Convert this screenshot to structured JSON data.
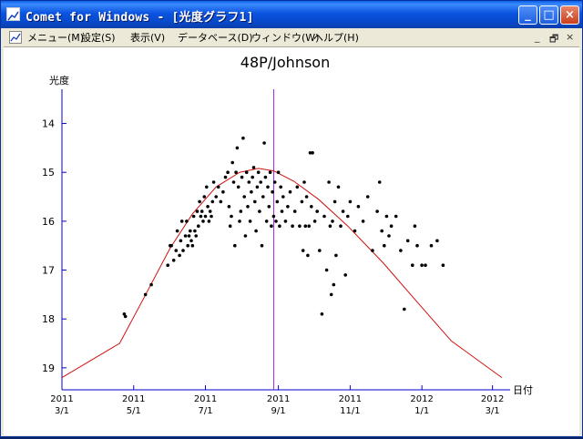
{
  "window": {
    "title": "Comet for Windows - [光度グラフ1]",
    "buttons": {
      "minimize": "_",
      "maximize": "□",
      "close": "×"
    }
  },
  "menubar": {
    "items": [
      "メニュー(M)",
      "設定(S)",
      "表示(V)",
      "データベース(D)",
      "ウィンドウ(W)",
      "ヘルプ(H)"
    ],
    "mdi_buttons": {
      "minimize": "_",
      "restore": "🗗",
      "close": "×"
    }
  },
  "chart_data": {
    "type": "scatter",
    "title": "48P/Johnson",
    "xlabel": "日付",
    "ylabel": "光度",
    "y_inverted": true,
    "ylim": [
      19.45,
      13.3
    ],
    "y_ticks": [
      14,
      15,
      16,
      17,
      18,
      19
    ],
    "xlim": [
      "2011-03-01",
      "2012-03-16"
    ],
    "x_ticks": [
      {
        "date": "2011-03-01",
        "year": "2011",
        "md": "3/1"
      },
      {
        "date": "2011-05-01",
        "year": "2011",
        "md": "5/1"
      },
      {
        "date": "2011-07-01",
        "year": "2011",
        "md": "7/1"
      },
      {
        "date": "2011-09-01",
        "year": "2011",
        "md": "9/1"
      },
      {
        "date": "2011-11-01",
        "year": "2011",
        "md": "11/1"
      },
      {
        "date": "2012-01-01",
        "year": "2012",
        "md": "1/1"
      },
      {
        "date": "2012-03-01",
        "year": "2012",
        "md": "3/1"
      }
    ],
    "vertical_marker_date": "2011-08-28",
    "colors": {
      "points": "#000000",
      "curve": "#d01010",
      "marker": "#a020e0",
      "axes": "#0000cc"
    },
    "curve": [
      [
        "2011-03-01",
        19.2
      ],
      [
        "2011-04-19",
        18.5
      ],
      [
        "2011-05-09",
        17.6
      ],
      [
        "2011-06-01",
        16.55
      ],
      [
        "2011-06-20",
        15.85
      ],
      [
        "2011-07-10",
        15.3
      ],
      [
        "2011-07-30",
        15.0
      ],
      [
        "2011-08-15",
        14.92
      ],
      [
        "2011-08-28",
        14.97
      ],
      [
        "2011-09-14",
        15.18
      ],
      [
        "2011-10-05",
        15.55
      ],
      [
        "2011-10-30",
        16.1
      ],
      [
        "2011-11-29",
        16.85
      ],
      [
        "2011-12-26",
        17.6
      ],
      [
        "2012-01-26",
        18.45
      ],
      [
        "2012-03-09",
        19.2
      ]
    ],
    "points": [
      [
        "2011-04-23",
        17.9
      ],
      [
        "2011-04-24",
        17.95
      ],
      [
        "2011-05-11",
        17.5
      ],
      [
        "2011-05-16",
        17.3
      ],
      [
        "2011-05-30",
        16.9
      ],
      [
        "2011-06-01",
        16.5
      ],
      [
        "2011-06-02",
        16.5
      ],
      [
        "2011-06-04",
        16.8
      ],
      [
        "2011-06-06",
        16.6
      ],
      [
        "2011-06-07",
        16.2
      ],
      [
        "2011-06-09",
        16.7
      ],
      [
        "2011-06-10",
        16.4
      ],
      [
        "2011-06-11",
        16.0
      ],
      [
        "2011-06-12",
        16.6
      ],
      [
        "2011-06-14",
        16.3
      ],
      [
        "2011-06-15",
        16.0
      ],
      [
        "2011-06-16",
        16.5
      ],
      [
        "2011-06-17",
        16.3
      ],
      [
        "2011-06-18",
        16.2
      ],
      [
        "2011-06-19",
        16.4
      ],
      [
        "2011-06-20",
        16.5
      ],
      [
        "2011-06-21",
        15.9
      ],
      [
        "2011-06-22",
        16.2
      ],
      [
        "2011-06-23",
        16.3
      ],
      [
        "2011-06-24",
        15.8
      ],
      [
        "2011-06-25",
        16.1
      ],
      [
        "2011-06-26",
        15.6
      ],
      [
        "2011-06-27",
        15.9
      ],
      [
        "2011-06-28",
        15.8
      ],
      [
        "2011-06-29",
        16.0
      ],
      [
        "2011-06-30",
        15.5
      ],
      [
        "2011-07-01",
        15.9
      ],
      [
        "2011-07-02",
        15.3
      ],
      [
        "2011-07-03",
        15.7
      ],
      [
        "2011-07-04",
        16.0
      ],
      [
        "2011-07-05",
        15.8
      ],
      [
        "2011-07-06",
        15.9
      ],
      [
        "2011-07-07",
        15.6
      ],
      [
        "2011-07-08",
        15.2
      ],
      [
        "2011-07-10",
        15.5
      ],
      [
        "2011-07-12",
        15.3
      ],
      [
        "2011-07-14",
        15.6
      ],
      [
        "2011-07-16",
        15.4
      ],
      [
        "2011-07-18",
        15.1
      ],
      [
        "2011-07-20",
        15.0
      ],
      [
        "2011-07-21",
        15.7
      ],
      [
        "2011-07-22",
        16.1
      ],
      [
        "2011-07-23",
        15.9
      ],
      [
        "2011-07-24",
        14.8
      ],
      [
        "2011-07-25",
        15.2
      ],
      [
        "2011-07-26",
        16.5
      ],
      [
        "2011-07-27",
        15.0
      ],
      [
        "2011-07-28",
        14.5
      ],
      [
        "2011-07-29",
        15.3
      ],
      [
        "2011-07-30",
        16.0
      ],
      [
        "2011-07-31",
        15.8
      ],
      [
        "2011-08-01",
        15.1
      ],
      [
        "2011-08-02",
        14.3
      ],
      [
        "2011-08-03",
        15.5
      ],
      [
        "2011-08-04",
        16.3
      ],
      [
        "2011-08-05",
        15.0
      ],
      [
        "2011-08-06",
        15.7
      ],
      [
        "2011-08-07",
        15.2
      ],
      [
        "2011-08-08",
        16.0
      ],
      [
        "2011-08-09",
        15.4
      ],
      [
        "2011-08-10",
        15.1
      ],
      [
        "2011-08-11",
        14.9
      ],
      [
        "2011-08-12",
        15.6
      ],
      [
        "2011-08-13",
        16.2
      ],
      [
        "2011-08-14",
        15.3
      ],
      [
        "2011-08-15",
        15.0
      ],
      [
        "2011-08-16",
        15.8
      ],
      [
        "2011-08-17",
        15.2
      ],
      [
        "2011-08-18",
        16.5
      ],
      [
        "2011-08-19",
        15.5
      ],
      [
        "2011-08-20",
        14.4
      ],
      [
        "2011-08-21",
        15.1
      ],
      [
        "2011-08-22",
        16.0
      ],
      [
        "2011-08-23",
        15.3
      ],
      [
        "2011-08-24",
        15.7
      ],
      [
        "2011-08-25",
        15.0
      ],
      [
        "2011-08-26",
        16.1
      ],
      [
        "2011-08-27",
        15.4
      ],
      [
        "2011-08-28",
        15.9
      ],
      [
        "2011-08-29",
        15.2
      ],
      [
        "2011-08-30",
        16.0
      ],
      [
        "2011-08-31",
        15.6
      ],
      [
        "2011-09-01",
        15.0
      ],
      [
        "2011-09-02",
        16.1
      ],
      [
        "2011-09-03",
        15.3
      ],
      [
        "2011-09-04",
        15.8
      ],
      [
        "2011-09-05",
        15.5
      ],
      [
        "2011-09-07",
        16.0
      ],
      [
        "2011-09-09",
        15.7
      ],
      [
        "2011-09-11",
        15.4
      ],
      [
        "2011-09-13",
        16.1
      ],
      [
        "2011-09-15",
        15.8
      ],
      [
        "2011-09-17",
        15.3
      ],
      [
        "2011-09-19",
        16.1
      ],
      [
        "2011-09-21",
        15.6
      ],
      [
        "2011-09-22",
        16.6
      ],
      [
        "2011-09-23",
        15.2
      ],
      [
        "2011-09-24",
        16.1
      ],
      [
        "2011-09-25",
        15.5
      ],
      [
        "2011-09-26",
        16.7
      ],
      [
        "2011-09-27",
        16.1
      ],
      [
        "2011-09-28",
        14.6
      ],
      [
        "2011-09-29",
        15.7
      ],
      [
        "2011-09-30",
        14.6
      ],
      [
        "2011-10-02",
        16.0
      ],
      [
        "2011-10-04",
        15.8
      ],
      [
        "2011-10-06",
        16.6
      ],
      [
        "2011-10-08",
        17.9
      ],
      [
        "2011-10-10",
        15.9
      ],
      [
        "2011-10-12",
        17.0
      ],
      [
        "2011-10-14",
        15.2
      ],
      [
        "2011-10-15",
        16.1
      ],
      [
        "2011-10-16",
        17.5
      ],
      [
        "2011-10-17",
        16.0
      ],
      [
        "2011-10-18",
        17.3
      ],
      [
        "2011-10-19",
        15.6
      ],
      [
        "2011-10-20",
        16.7
      ],
      [
        "2011-10-22",
        15.3
      ],
      [
        "2011-10-24",
        16.1
      ],
      [
        "2011-10-26",
        15.8
      ],
      [
        "2011-10-28",
        17.1
      ],
      [
        "2011-10-30",
        15.9
      ],
      [
        "2011-11-01",
        15.6
      ],
      [
        "2011-11-05",
        16.2
      ],
      [
        "2011-11-08",
        15.7
      ],
      [
        "2011-11-12",
        16.0
      ],
      [
        "2011-11-16",
        15.5
      ],
      [
        "2011-11-20",
        16.6
      ],
      [
        "2011-11-24",
        15.8
      ],
      [
        "2011-11-26",
        15.2
      ],
      [
        "2011-11-28",
        16.2
      ],
      [
        "2011-11-30",
        16.5
      ],
      [
        "2011-12-02",
        15.9
      ],
      [
        "2011-12-04",
        16.3
      ],
      [
        "2011-12-06",
        16.1
      ],
      [
        "2011-12-10",
        15.9
      ],
      [
        "2011-12-14",
        16.6
      ],
      [
        "2011-12-17",
        17.8
      ],
      [
        "2011-12-20",
        16.4
      ],
      [
        "2011-12-24",
        16.9
      ],
      [
        "2011-12-26",
        16.1
      ],
      [
        "2011-12-28",
        16.5
      ],
      [
        "2012-01-01",
        16.9
      ],
      [
        "2012-01-04",
        16.9
      ],
      [
        "2012-01-09",
        16.5
      ],
      [
        "2012-01-14",
        16.4
      ],
      [
        "2012-01-19",
        16.9
      ]
    ]
  }
}
